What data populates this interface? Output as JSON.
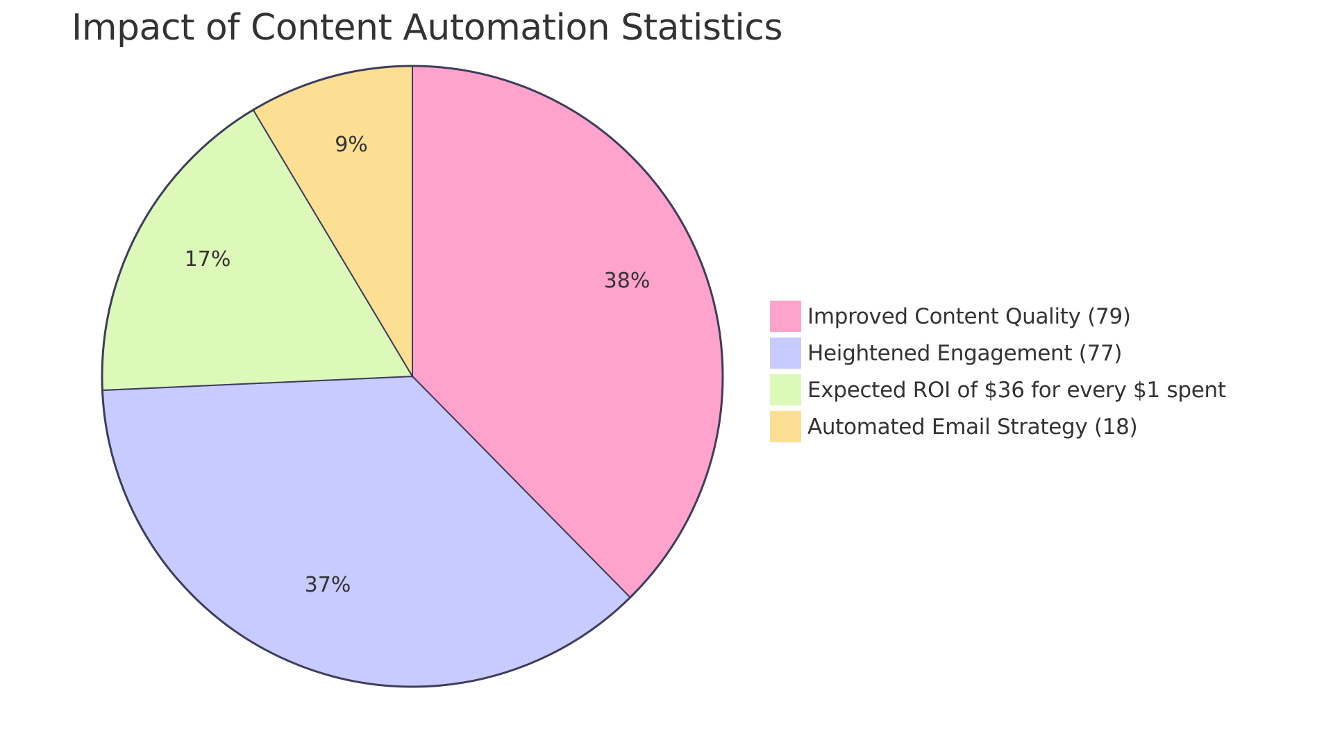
{
  "chart_data": {
    "type": "pie",
    "title": "Impact of Content Automation Statistics",
    "categories": [
      "Improved Content Quality",
      "Heightened Engagement",
      "Expected ROI of $36 for every $1 spent",
      "Automated Email Strategy"
    ],
    "values": [
      79,
      77,
      36,
      18
    ],
    "percent_labels": [
      "38%",
      "37%",
      "17%",
      "9%"
    ],
    "colors": [
      "#FFA3CD",
      "#C8CBFF",
      "#DCF9BA",
      "#FDDF93"
    ],
    "legend_position": "right",
    "legend_entries": [
      "Improved Content Quality (79)",
      "Heightened Engagement (77)",
      "Expected ROI of $36 for every $1 spent",
      "Automated Email Strategy (18)"
    ]
  },
  "title": "Impact of Content Automation Statistics",
  "legend": [
    {
      "label": "Improved Content Quality (79)",
      "color": "#FFA3CD"
    },
    {
      "label": "Heightened Engagement (77)",
      "color": "#C8CBFF"
    },
    {
      "label": "Expected ROI of $36 for every $1 spent",
      "color": "#DCF9BA"
    },
    {
      "label": "Automated Email Strategy (18)",
      "color": "#FDDF93"
    }
  ],
  "slices": [
    {
      "label": "38%"
    },
    {
      "label": "37%"
    },
    {
      "label": "17%"
    },
    {
      "label": "9%"
    }
  ]
}
